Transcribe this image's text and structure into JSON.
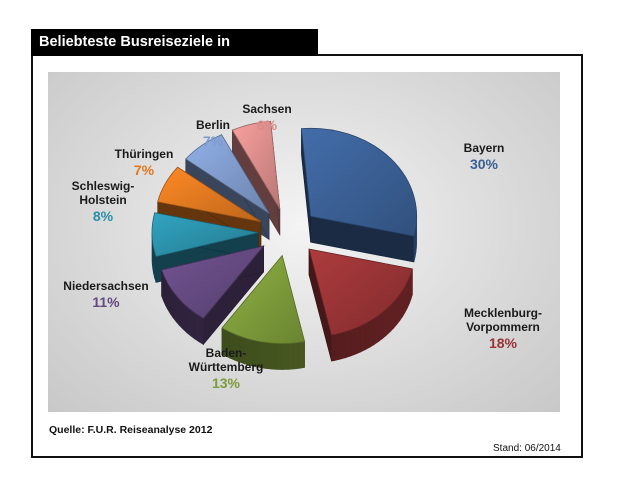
{
  "title": "Beliebteste Busreiseziele in Deutschland",
  "source": "Quelle: F.U.R. Reiseanalyse 2012",
  "stand": "Stand: 06/2014",
  "chart_data": {
    "type": "pie",
    "title": "Beliebteste Busreiseziele in Deutschland",
    "unit": "%",
    "slices": [
      {
        "label": "Bayern",
        "value": 30,
        "display": "30%",
        "color": "#3a5f94"
      },
      {
        "label": "Mecklenburg-Vorpommern",
        "value": 18,
        "display": "18%",
        "color": "#973335"
      },
      {
        "label": "Baden-Württemberg",
        "value": 13,
        "display": "13%",
        "color": "#7d9b3a"
      },
      {
        "label": "Niedersachsen",
        "value": 11,
        "display": "11%",
        "color": "#63497f"
      },
      {
        "label": "Schleswig-Holstein",
        "value": 8,
        "display": "8%",
        "color": "#2b8fa8"
      },
      {
        "label": "Thüringen",
        "value": 7,
        "display": "7%",
        "color": "#e07820"
      },
      {
        "label": "Berlin",
        "value": 7,
        "display": "7%",
        "color": "#7f9acb"
      },
      {
        "label": "Sachsen",
        "value": 6,
        "display": "6%",
        "color": "#d98c8a"
      }
    ]
  }
}
